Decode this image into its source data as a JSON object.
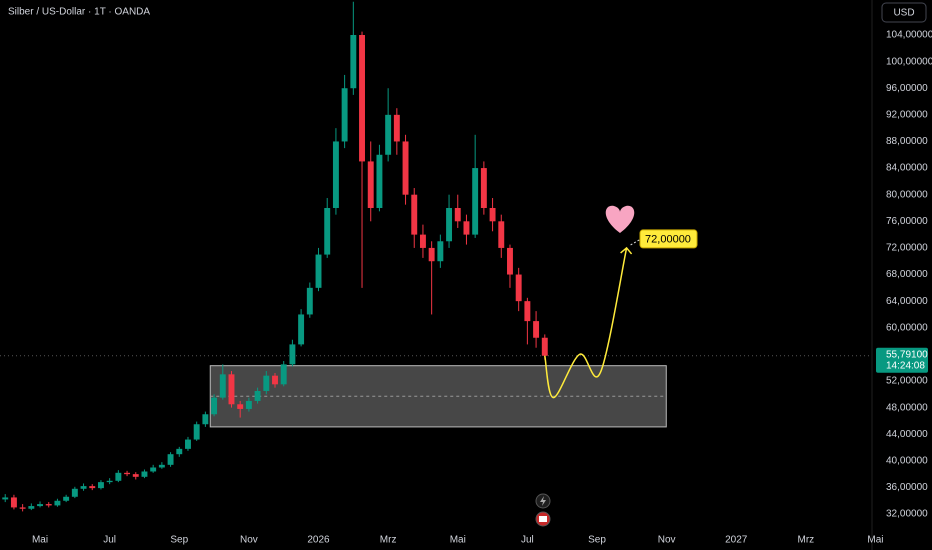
{
  "chart_data": {
    "type": "candlestick",
    "title": "Silber / US-Dollar · 1T · OANDA",
    "currency": "USD",
    "up_color": "#089981",
    "down_color": "#f23645",
    "grid": false,
    "xlim": [
      -1.15,
      23.9
    ],
    "xticks": [
      {
        "value": 0,
        "label": "Mai"
      },
      {
        "value": 2,
        "label": "Jul"
      },
      {
        "value": 4,
        "label": "Sep"
      },
      {
        "value": 6,
        "label": "Nov"
      },
      {
        "value": 8,
        "label": "2026"
      },
      {
        "value": 10,
        "label": "Mrz"
      },
      {
        "value": 12,
        "label": "Mai"
      },
      {
        "value": 14,
        "label": "Jul"
      },
      {
        "value": 16,
        "label": "Sep"
      },
      {
        "value": 18,
        "label": "Nov"
      },
      {
        "value": 20,
        "label": "2027"
      },
      {
        "value": 22,
        "label": "Mrz"
      },
      {
        "value": 24,
        "label": "Mai"
      }
    ],
    "ylim": [
      26.6,
      109.26
    ],
    "yticks": [
      {
        "value": 32,
        "label": "32,00000"
      },
      {
        "value": 36,
        "label": "36,00000"
      },
      {
        "value": 40,
        "label": "40,00000"
      },
      {
        "value": 44,
        "label": "44,00000"
      },
      {
        "value": 48,
        "label": "48,00000"
      },
      {
        "value": 52,
        "label": "52,00000"
      },
      {
        "value": 56,
        "label": "56,00000"
      },
      {
        "value": 60,
        "label": "60,00000"
      },
      {
        "value": 64,
        "label": "64,00000"
      },
      {
        "value": 68,
        "label": "68,00000"
      },
      {
        "value": 72,
        "label": "72,00000"
      },
      {
        "value": 76,
        "label": "76,00000"
      },
      {
        "value": 80,
        "label": "80,00000"
      },
      {
        "value": 84,
        "label": "84,00000"
      },
      {
        "value": 88,
        "label": "88,00000"
      },
      {
        "value": 92,
        "label": "92,00000"
      },
      {
        "value": 96,
        "label": "96,00000"
      },
      {
        "value": 100,
        "label": "100,00000"
      },
      {
        "value": 104,
        "label": "104,00000"
      }
    ],
    "x": [
      -1.0,
      -0.75,
      -0.5,
      -0.25,
      0.0,
      0.25,
      0.5,
      0.75,
      1.0,
      1.25,
      1.5,
      1.75,
      2.0,
      2.25,
      2.5,
      2.75,
      3.0,
      3.25,
      3.5,
      3.75,
      4.0,
      4.25,
      4.5,
      4.75,
      5.0,
      5.25,
      5.5,
      5.75,
      6.0,
      6.25,
      6.5,
      6.75,
      7.0,
      7.25,
      7.5,
      7.75,
      8.0,
      8.25,
      8.5,
      8.75,
      9.0,
      9.25,
      9.5,
      9.75,
      10.0,
      10.25,
      10.5,
      10.75,
      11.0,
      11.25,
      11.5,
      11.75,
      12.0,
      12.25,
      12.5,
      12.75,
      13.0,
      13.25,
      13.5,
      13.75,
      14.0,
      14.25,
      14.5
    ],
    "open": [
      34.2,
      34.5,
      33.0,
      32.8,
      33.2,
      33.5,
      33.3,
      34.0,
      34.6,
      35.8,
      36.2,
      35.9,
      36.8,
      37.0,
      38.2,
      38.0,
      37.6,
      38.4,
      39.0,
      39.4,
      41.0,
      41.8,
      43.2,
      45.5,
      47.0,
      49.5,
      53.0,
      48.5,
      47.8,
      49.0,
      50.5,
      52.8,
      51.5,
      54.5,
      57.5,
      62.0,
      66.0,
      71.0,
      78.0,
      88.0,
      96.0,
      104.0,
      85.0,
      78.0,
      86.0,
      92.0,
      88.0,
      80.0,
      74.0,
      72.0,
      70.0,
      73.0,
      78.0,
      76.0,
      74.0,
      84.0,
      78.0,
      76.0,
      72.0,
      68.0,
      64.0,
      61.0,
      58.5
    ],
    "high": [
      35.0,
      34.9,
      33.5,
      33.6,
      33.9,
      33.8,
      34.3,
      34.9,
      36.1,
      36.6,
      36.5,
      37.1,
      37.4,
      38.6,
      38.5,
      38.3,
      38.7,
      39.4,
      39.8,
      41.3,
      42.1,
      43.6,
      45.9,
      47.4,
      50.0,
      54.5,
      53.5,
      49.0,
      49.5,
      51.0,
      53.5,
      53.2,
      55.0,
      58.2,
      62.8,
      66.8,
      72.0,
      79.5,
      90.0,
      98.0,
      109.0,
      104.5,
      88.0,
      87.5,
      96.0,
      93.0,
      89.0,
      81.0,
      75.5,
      73.0,
      74.0,
      80.0,
      80.0,
      77.0,
      89.0,
      85.0,
      79.5,
      77.0,
      72.5,
      69.0,
      64.5,
      62.5,
      59.0
    ],
    "low": [
      33.8,
      32.7,
      32.4,
      32.6,
      33.0,
      33.0,
      33.1,
      33.8,
      34.4,
      35.5,
      35.6,
      35.7,
      36.5,
      36.8,
      37.7,
      37.2,
      37.4,
      38.2,
      38.8,
      39.1,
      40.6,
      41.5,
      43.0,
      45.1,
      46.7,
      49.2,
      48.0,
      46.5,
      47.4,
      48.6,
      50.0,
      51.0,
      51.2,
      54.2,
      57.2,
      61.5,
      65.5,
      70.5,
      77.0,
      87.0,
      95.0,
      66.0,
      76.0,
      77.5,
      85.0,
      86.0,
      78.5,
      72.0,
      70.5,
      62.0,
      69.0,
      72.0,
      75.0,
      72.5,
      73.5,
      77.0,
      74.5,
      70.5,
      66.0,
      62.5,
      57.5,
      57.0,
      55.2
    ],
    "close": [
      34.5,
      33.0,
      32.8,
      33.2,
      33.5,
      33.3,
      34.0,
      34.6,
      35.8,
      36.2,
      35.9,
      36.8,
      37.0,
      38.2,
      38.0,
      37.6,
      38.4,
      39.0,
      39.4,
      41.0,
      41.8,
      43.2,
      45.5,
      47.0,
      49.5,
      53.0,
      48.5,
      47.8,
      49.0,
      50.5,
      52.8,
      51.5,
      54.5,
      57.5,
      62.0,
      66.0,
      71.0,
      78.0,
      88.0,
      96.0,
      104.0,
      85.0,
      78.0,
      86.0,
      92.0,
      88.0,
      80.0,
      74.0,
      72.0,
      70.0,
      73.0,
      78.0,
      76.0,
      74.0,
      84.0,
      78.0,
      76.0,
      72.0,
      68.0,
      64.0,
      61.0,
      58.5,
      55.791
    ],
    "zone": {
      "x": [
        4.89,
        17.99
      ],
      "values": [
        54.3,
        45.1
      ],
      "mid": 49.7
    },
    "projection": {
      "color": "#ffeb3b",
      "x": [
        14.5,
        14.75,
        15.5,
        16.1,
        16.85
      ],
      "values": [
        55.8,
        49.5,
        56.0,
        53.3,
        72.0
      ]
    },
    "annotation": {
      "value": 72,
      "label": "72,00000"
    },
    "last_price": {
      "value": 55.791,
      "label": "55,79100",
      "countdown": "14:24:08"
    }
  }
}
